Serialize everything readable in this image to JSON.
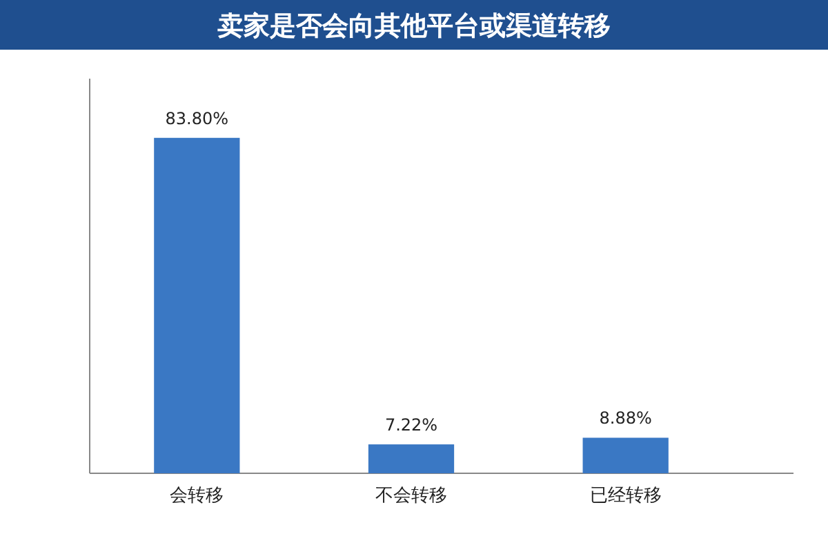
{
  "chart_data": {
    "type": "bar",
    "title": "卖家是否会向其他平台或渠道转移",
    "categories": [
      "会转移",
      "不会转移",
      "已经转移"
    ],
    "values": [
      83.8,
      7.22,
      8.88
    ],
    "value_labels": [
      "83.80%",
      "7.22%",
      "8.88%"
    ],
    "color": "#3a78c4"
  }
}
